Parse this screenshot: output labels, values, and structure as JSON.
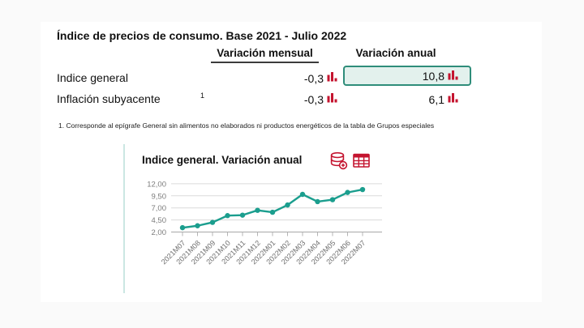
{
  "card": {
    "title": "Índice de precios de consumo. Base 2021 - Julio 2022",
    "table": {
      "col_monthly": "Variación mensual",
      "col_annual": "Variación anual",
      "rows": [
        {
          "label": "Indice general",
          "footnote_ref": "",
          "monthly": "-0,3",
          "annual": "10,8"
        },
        {
          "label": "Inflación subyacente",
          "footnote_ref": "1",
          "monthly": "-0,3",
          "annual": "6,1"
        }
      ]
    },
    "footnote": "1. Corresponde al epígrafe General sin alimentos no elaborados ni productos energéticos de la tabla de Grupos especiales",
    "chart_panel": {
      "title": "Indice general. Variación anual",
      "icons": [
        "database-add",
        "table-view"
      ]
    }
  },
  "chart_data": {
    "type": "line",
    "title": "Indice general. Variación anual",
    "categories": [
      "2021M07",
      "2021M08",
      "2021M09",
      "2021M10",
      "2021M11",
      "2021M12",
      "2022M01",
      "2022M02",
      "2022M03",
      "2022M04",
      "2022M05",
      "2022M06",
      "2022M07"
    ],
    "values": [
      2.9,
      3.3,
      4.0,
      5.4,
      5.5,
      6.5,
      6.1,
      7.6,
      9.8,
      8.3,
      8.7,
      10.2,
      10.8
    ],
    "y_ticks": [
      12,
      9.5,
      7,
      4.5,
      2
    ],
    "y_tick_labels": [
      "12,00",
      "9,50",
      "7,00",
      "4,50",
      "2,00"
    ],
    "ylim": [
      2,
      12
    ],
    "grid": true,
    "legend": "none",
    "line_color": "#1b9e8e"
  },
  "colors": {
    "accent_red": "#c4142f",
    "line_teal": "#1b9e8e",
    "cell_border": "#2f8d7a",
    "cell_fill": "#e3f1ed",
    "panel_border": "#cbe7e3"
  }
}
